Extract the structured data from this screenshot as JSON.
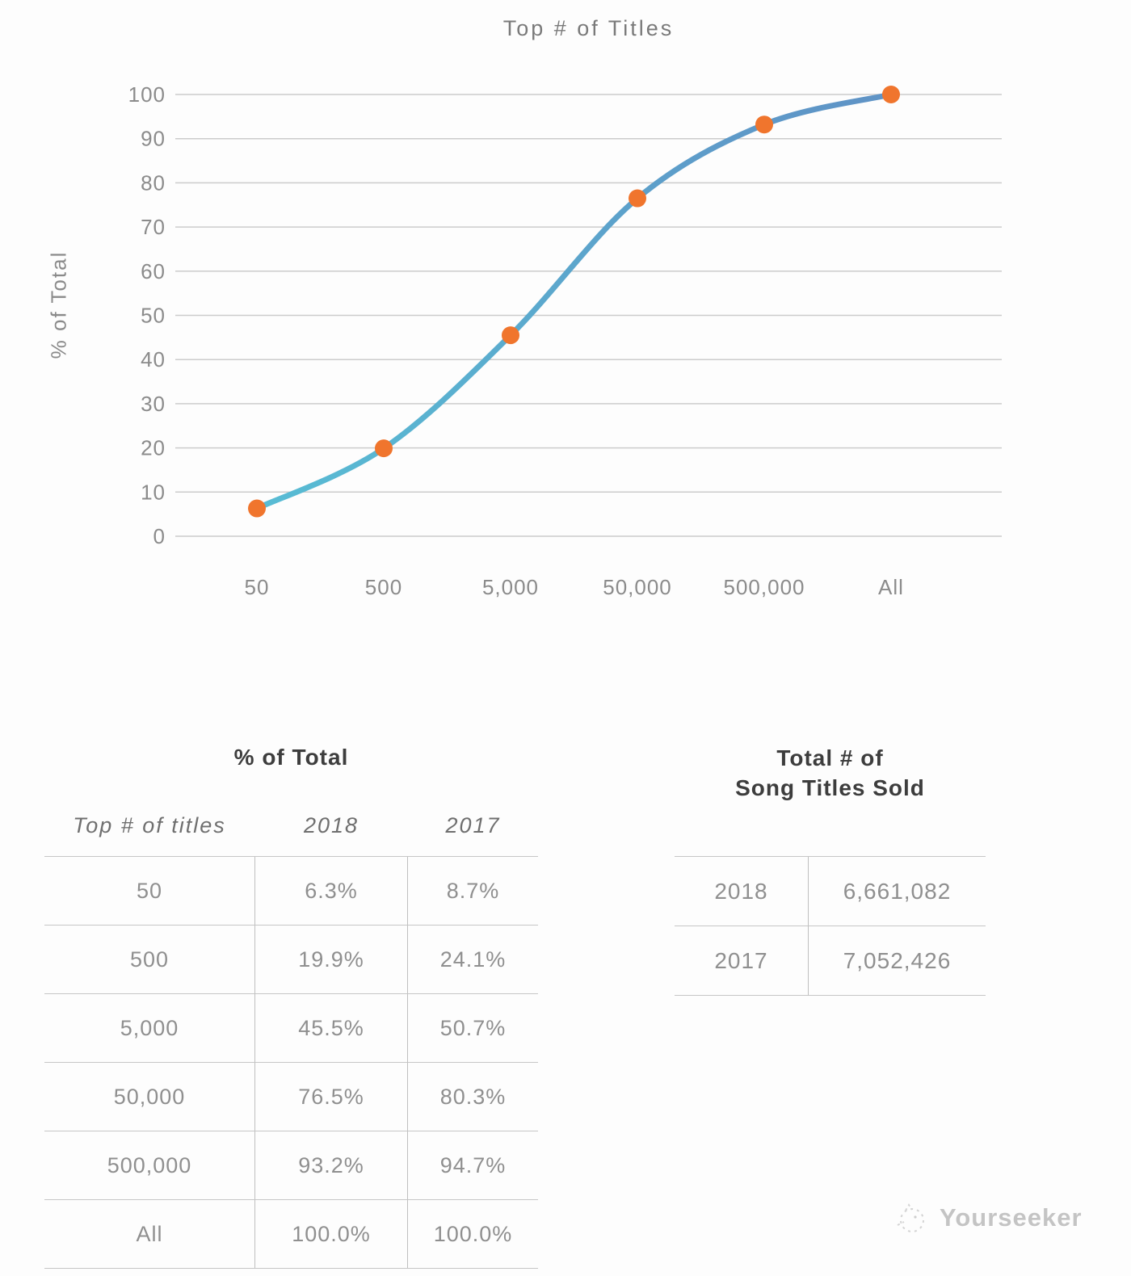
{
  "chart_data": {
    "type": "line",
    "title": "Top # of Titles",
    "xlabel": "",
    "ylabel": "% of Total",
    "categories": [
      "50",
      "500",
      "5,000",
      "50,000",
      "500,000",
      "All"
    ],
    "series": [
      {
        "name": "2018",
        "values": [
          6.3,
          19.9,
          45.5,
          76.5,
          93.2,
          100.0
        ]
      }
    ],
    "ylim": [
      0,
      100
    ],
    "yticks": [
      0,
      10,
      20,
      30,
      40,
      50,
      60,
      70,
      80,
      90,
      100
    ],
    "grid": true,
    "legend": "none",
    "line_color_start": "#58bcd4",
    "line_color_end": "#5f93c6",
    "marker_color": "#f0752d",
    "gridline_color": "#cccccc",
    "tick_color": "#8b8b8b"
  },
  "tables": {
    "percent_of_total": {
      "title": "% of Total",
      "columns": [
        "Top # of titles",
        "2018",
        "2017"
      ],
      "rows": [
        {
          "label": "50",
          "y2018": "6.3%",
          "y2017": "8.7%"
        },
        {
          "label": "500",
          "y2018": "19.9%",
          "y2017": "24.1%"
        },
        {
          "label": "5,000",
          "y2018": "45.5%",
          "y2017": "50.7%"
        },
        {
          "label": "50,000",
          "y2018": "76.5%",
          "y2017": "80.3%"
        },
        {
          "label": "500,000",
          "y2018": "93.2%",
          "y2017": "94.7%"
        },
        {
          "label": "All",
          "y2018": "100.0%",
          "y2017": "100.0%"
        }
      ]
    },
    "titles_sold": {
      "title_line1": "Total # of",
      "title_line2": "Song Titles Sold",
      "rows": [
        {
          "year": "2018",
          "value": "6,661,082"
        },
        {
          "year": "2017",
          "value": "7,052,426"
        }
      ]
    }
  },
  "watermark": {
    "label": "Yourseeker"
  }
}
